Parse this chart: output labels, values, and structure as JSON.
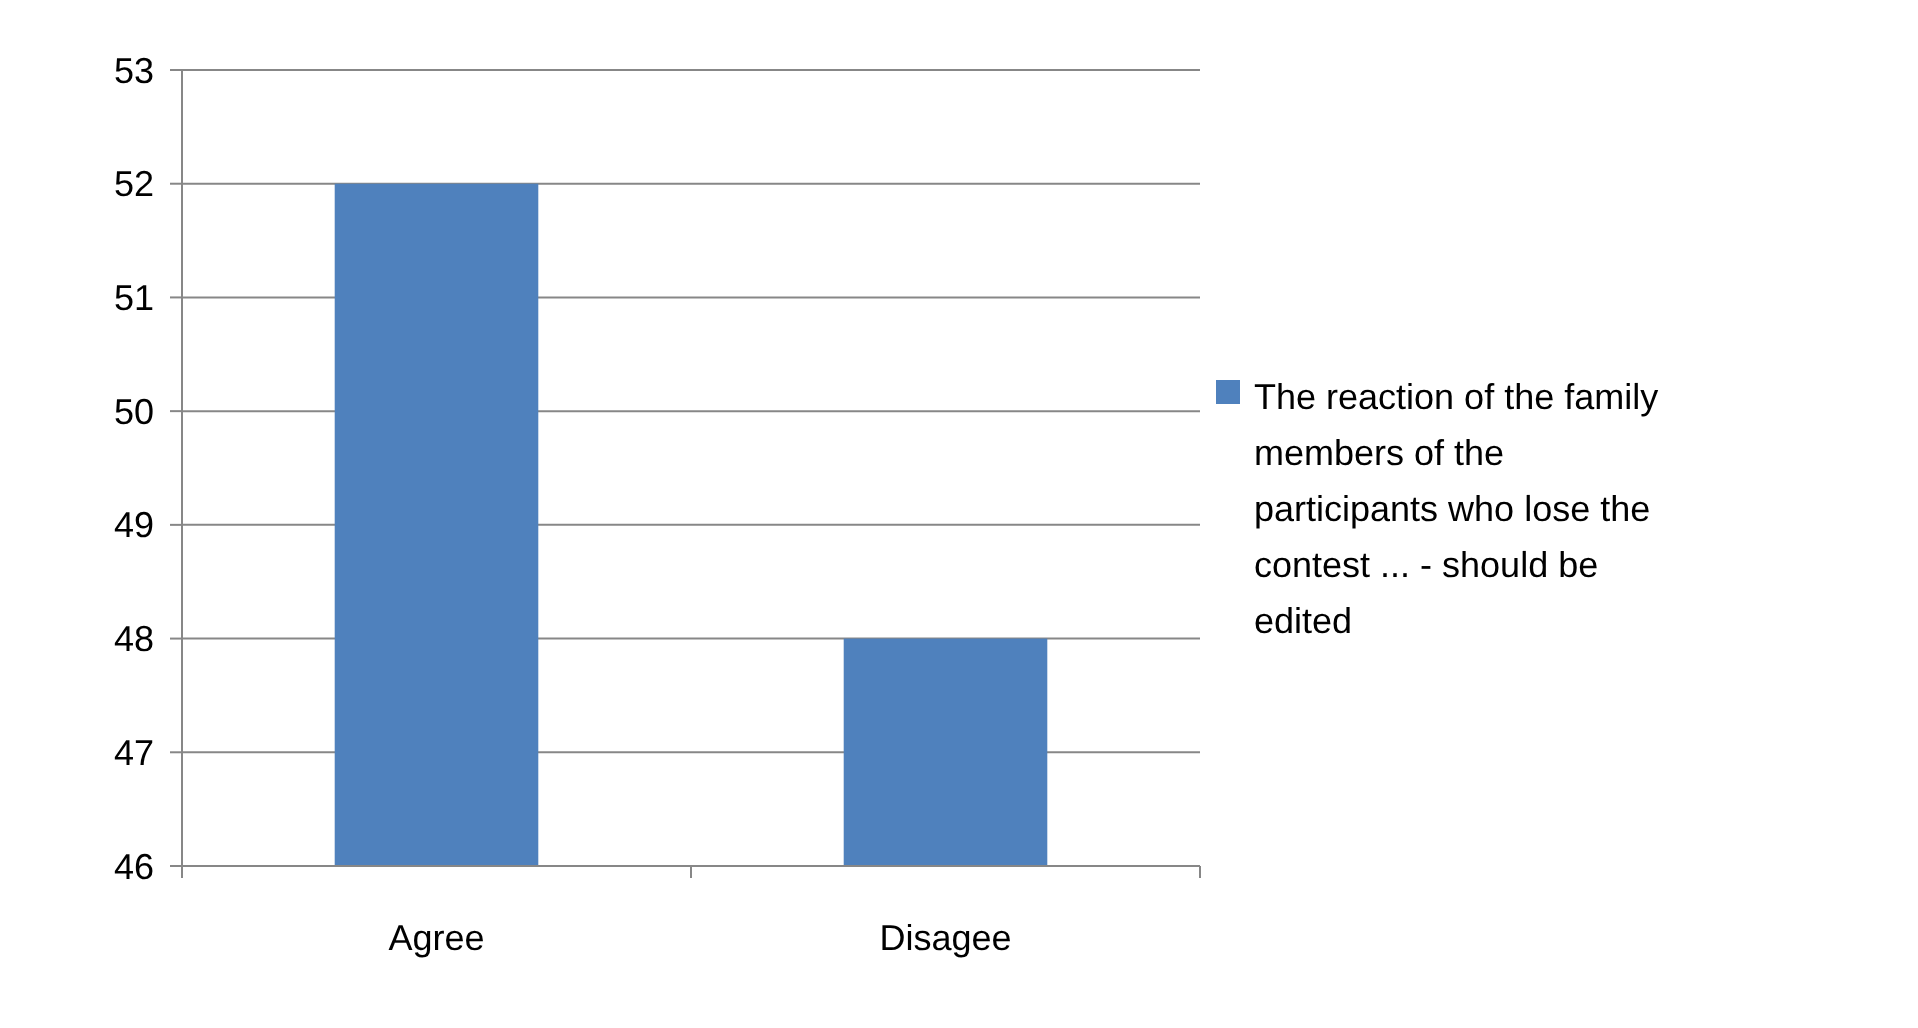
{
  "chart_data": {
    "type": "bar",
    "categories": [
      "Agree",
      "Disagee"
    ],
    "series": [
      {
        "name": "The reaction of the family members of the participants who lose the contest ... - should be edited",
        "color": "#4f81bd",
        "values": [
          52,
          48
        ]
      }
    ],
    "ylim": [
      46,
      53
    ],
    "yticks": [
      46,
      47,
      48,
      49,
      50,
      51,
      52,
      53
    ],
    "grid": "y",
    "legend": "right"
  }
}
